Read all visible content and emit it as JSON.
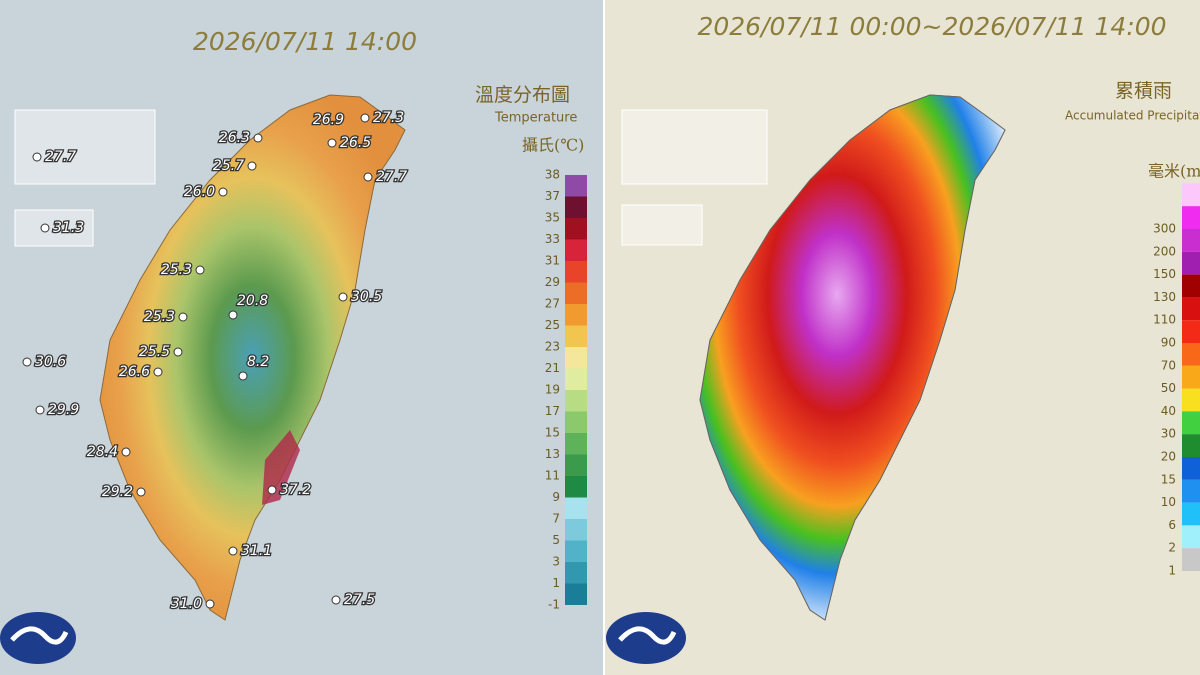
{
  "temperature_panel": {
    "timestamp": "2026/07/11 14:00",
    "title": "溫度分布圖",
    "subtitle": "Temperature",
    "unit": "攝氏(℃)",
    "legend_labels": [
      38,
      37,
      35,
      33,
      31,
      29,
      27,
      25,
      23,
      21,
      19,
      17,
      15,
      13,
      11,
      9,
      7,
      5,
      3,
      1,
      -1
    ],
    "legend_colors": [
      "#8e4aa6",
      "#6e1030",
      "#a01020",
      "#d8243a",
      "#e8442a",
      "#ec6e26",
      "#f09a30",
      "#f2c450",
      "#f4e69a",
      "#e0eda0",
      "#b8dc84",
      "#8cc86c",
      "#5eb25a",
      "#3c9a4c",
      "#1e8a44",
      "#a8e2ee",
      "#7ccadc",
      "#52b2c8",
      "#3298b0",
      "#1a7e98"
    ],
    "stations": [
      "27.7",
      "31.3",
      "30.6",
      "29.9",
      "26.3",
      "25.7",
      "26.0",
      "26.9",
      "27.3",
      "26.5",
      "27.7",
      "25.3",
      "30.5",
      "25.3",
      "20.8",
      "25.5",
      "26.6",
      "8.2",
      "28.4",
      "29.2",
      "37.2",
      "31.1",
      "31.0",
      "27.5"
    ]
  },
  "rainfall_panel": {
    "timestamp": "2026/07/11 00:00~2026/07/11 14:00",
    "title": "累積雨",
    "subtitle": "Accumulated Precipitati",
    "unit": "毫米(m",
    "legend_labels": [
      300,
      200,
      150,
      130,
      110,
      90,
      70,
      50,
      40,
      30,
      20,
      15,
      10,
      6,
      2,
      1
    ],
    "legend_colors": [
      "#fcc8fc",
      "#f02cf0",
      "#c82ed0",
      "#a01eb0",
      "#a00000",
      "#d81010",
      "#f42a18",
      "#f86818",
      "#f8a818",
      "#f8e020",
      "#40d040",
      "#208c30",
      "#1060d8",
      "#2090f0",
      "#20c0f8",
      "#a0f0fc",
      "#c8c8c8"
    ]
  }
}
